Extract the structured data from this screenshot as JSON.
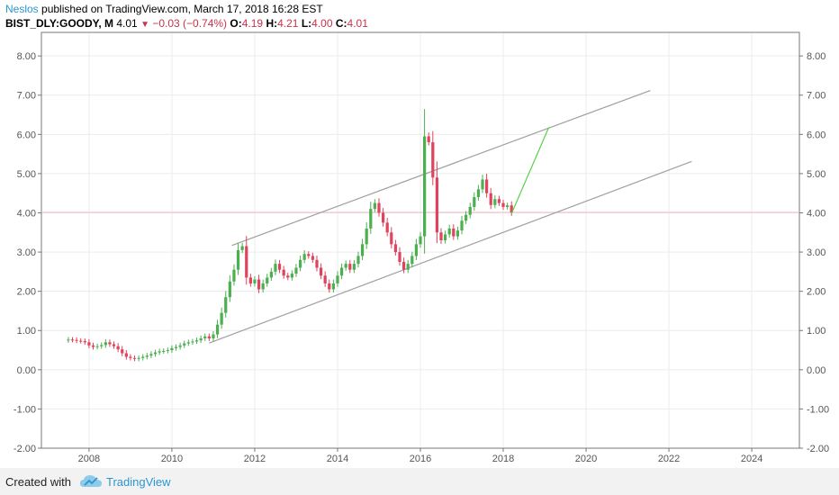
{
  "header": {
    "author": "Neslos",
    "published_text": "published on TradingView.com, March 17, 2018 16:28 EST",
    "symbol": "BIST_DLY:GOODY, M",
    "last": "4.01",
    "change": "−0.03 (−0.74%)",
    "o_label": "O:",
    "o_value": "4.19",
    "h_label": "H:",
    "h_value": "4.21",
    "l_label": "L:",
    "l_value": "4.00",
    "c_label": "C:",
    "c_value": "4.01"
  },
  "footer": {
    "created_with": "Created with",
    "brand": "TradingView"
  },
  "colors": {
    "up": "#4caf50",
    "down": "#e0435d",
    "channel": "#9e9e9e",
    "projection": "#59d14b",
    "price_line": "#f2b8bf",
    "grid": "#ececec"
  },
  "chart_data": {
    "type": "candlestick",
    "interval": "monthly",
    "x_ticks": [
      "2008",
      "2010",
      "2012",
      "2014",
      "2016",
      "2018",
      "2020",
      "2022",
      "2024"
    ],
    "y_ticks": [
      "8.00",
      "7.00",
      "6.00",
      "5.00",
      "4.00",
      "3.00",
      "2.00",
      "1.00",
      "0.00",
      "-1.00",
      "-2.00"
    ],
    "ylim": [
      -2.0,
      8.6
    ],
    "xlim": [
      2006.85,
      2025.15
    ],
    "current_price": 4.01,
    "series_close": [
      [
        2007.5,
        0.77
      ],
      [
        2007.6,
        0.76
      ],
      [
        2007.7,
        0.74
      ],
      [
        2007.8,
        0.73
      ],
      [
        2007.9,
        0.7
      ],
      [
        2008.0,
        0.62
      ],
      [
        2008.1,
        0.58
      ],
      [
        2008.2,
        0.6
      ],
      [
        2008.3,
        0.63
      ],
      [
        2008.4,
        0.7
      ],
      [
        2008.5,
        0.65
      ],
      [
        2008.6,
        0.6
      ],
      [
        2008.7,
        0.52
      ],
      [
        2008.8,
        0.42
      ],
      [
        2008.9,
        0.33
      ],
      [
        2009.0,
        0.3
      ],
      [
        2009.1,
        0.28
      ],
      [
        2009.2,
        0.3
      ],
      [
        2009.3,
        0.33
      ],
      [
        2009.4,
        0.36
      ],
      [
        2009.5,
        0.4
      ],
      [
        2009.6,
        0.44
      ],
      [
        2009.7,
        0.47
      ],
      [
        2009.8,
        0.48
      ],
      [
        2009.9,
        0.5
      ],
      [
        2010.0,
        0.55
      ],
      [
        2010.1,
        0.58
      ],
      [
        2010.2,
        0.62
      ],
      [
        2010.3,
        0.67
      ],
      [
        2010.4,
        0.7
      ],
      [
        2010.5,
        0.72
      ],
      [
        2010.6,
        0.75
      ],
      [
        2010.7,
        0.8
      ],
      [
        2010.8,
        0.85
      ],
      [
        2010.9,
        0.8
      ],
      [
        2011.0,
        0.9
      ],
      [
        2011.1,
        1.15
      ],
      [
        2011.2,
        1.45
      ],
      [
        2011.3,
        1.85
      ],
      [
        2011.4,
        2.25
      ],
      [
        2011.5,
        2.55
      ],
      [
        2011.6,
        3.05
      ],
      [
        2011.7,
        3.15
      ],
      [
        2011.8,
        2.35
      ],
      [
        2011.9,
        2.2
      ],
      [
        2012.0,
        2.3
      ],
      [
        2012.1,
        2.05
      ],
      [
        2012.2,
        2.2
      ],
      [
        2012.3,
        2.35
      ],
      [
        2012.4,
        2.5
      ],
      [
        2012.5,
        2.7
      ],
      [
        2012.6,
        2.55
      ],
      [
        2012.7,
        2.4
      ],
      [
        2012.8,
        2.35
      ],
      [
        2012.9,
        2.45
      ],
      [
        2013.0,
        2.6
      ],
      [
        2013.1,
        2.8
      ],
      [
        2013.2,
        2.95
      ],
      [
        2013.3,
        2.9
      ],
      [
        2013.4,
        2.8
      ],
      [
        2013.5,
        2.6
      ],
      [
        2013.6,
        2.4
      ],
      [
        2013.7,
        2.2
      ],
      [
        2013.8,
        2.05
      ],
      [
        2013.9,
        2.2
      ],
      [
        2014.0,
        2.4
      ],
      [
        2014.1,
        2.6
      ],
      [
        2014.2,
        2.7
      ],
      [
        2014.3,
        2.55
      ],
      [
        2014.4,
        2.7
      ],
      [
        2014.5,
        2.9
      ],
      [
        2014.6,
        3.2
      ],
      [
        2014.7,
        3.6
      ],
      [
        2014.8,
        4.1
      ],
      [
        2014.9,
        4.25
      ],
      [
        2015.0,
        4.0
      ],
      [
        2015.1,
        3.75
      ],
      [
        2015.2,
        3.5
      ],
      [
        2015.3,
        3.2
      ],
      [
        2015.4,
        3.0
      ],
      [
        2015.5,
        2.75
      ],
      [
        2015.6,
        2.55
      ],
      [
        2015.7,
        2.7
      ],
      [
        2015.8,
        2.9
      ],
      [
        2015.9,
        3.2
      ],
      [
        2016.0,
        3.4
      ],
      [
        2016.1,
        5.95
      ],
      [
        2016.2,
        5.8
      ],
      [
        2016.3,
        4.9
      ],
      [
        2016.4,
        3.5
      ],
      [
        2016.5,
        3.3
      ],
      [
        2016.6,
        3.45
      ],
      [
        2016.7,
        3.6
      ],
      [
        2016.8,
        3.4
      ],
      [
        2016.9,
        3.55
      ],
      [
        2017.0,
        3.8
      ],
      [
        2017.1,
        3.95
      ],
      [
        2017.2,
        4.15
      ],
      [
        2017.3,
        4.4
      ],
      [
        2017.4,
        4.6
      ],
      [
        2017.5,
        4.85
      ],
      [
        2017.6,
        4.5
      ],
      [
        2017.7,
        4.2
      ],
      [
        2017.8,
        4.35
      ],
      [
        2017.9,
        4.25
      ],
      [
        2018.0,
        4.15
      ],
      [
        2018.1,
        4.19
      ],
      [
        2018.2,
        4.01
      ]
    ],
    "channel_upper": [
      [
        2011.45,
        3.17
      ],
      [
        2021.55,
        7.12
      ]
    ],
    "channel_lower": [
      [
        2010.9,
        0.68
      ],
      [
        2022.55,
        5.31
      ]
    ],
    "projection": [
      [
        2018.2,
        3.98
      ],
      [
        2019.1,
        6.18
      ]
    ]
  }
}
